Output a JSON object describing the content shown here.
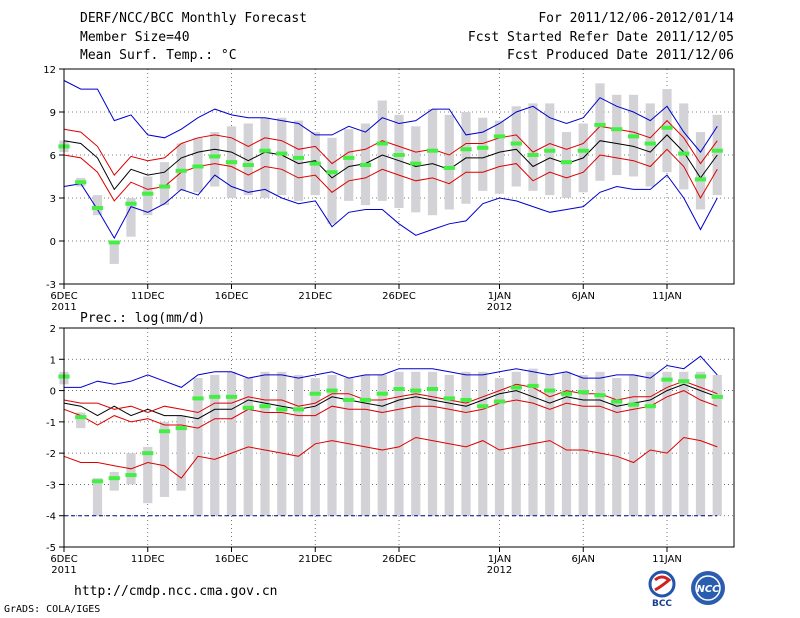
{
  "header": {
    "title": "DERF/NCC/BCC Monthly Forecast",
    "member_size": "Member Size=40",
    "variable": "Mean Surf. Temp.: °C",
    "period": "For 2011/12/06-2012/01/14",
    "started": "Fcst Started Refer Date 2011/12/05",
    "produced": "Fcst Produced Date 2011/12/06"
  },
  "panel2_label": "Prec.: log(mm/d)",
  "footer": {
    "url": "http://cmdp.ncc.cma.gov.cn",
    "grads": "GrADS: COLA/IGES",
    "logo_left": "BCC",
    "logo_right": "NCC"
  },
  "colors": {
    "box": "#d3d3d7",
    "median": "#44ee44",
    "mean": "#000000",
    "inner": "#dd0000",
    "outer": "#0000cc",
    "floor": "#000080"
  },
  "chart_data": [
    {
      "type": "boxplot",
      "title": "Mean Surf. Temp.: °C",
      "ylim": [
        -3,
        12
      ],
      "yticks": [
        -3,
        0,
        3,
        6,
        9,
        12
      ],
      "xlim": [
        6,
        46
      ],
      "xticks": [
        {
          "x": 6,
          "label": "6DEC",
          "sub": "2011"
        },
        {
          "x": 11,
          "label": "11DEC",
          "sub": ""
        },
        {
          "x": 16,
          "label": "16DEC",
          "sub": ""
        },
        {
          "x": 21,
          "label": "21DEC",
          "sub": ""
        },
        {
          "x": 26,
          "label": "26DEC",
          "sub": ""
        },
        {
          "x": 32,
          "label": "1JAN",
          "sub": "2012"
        },
        {
          "x": 37,
          "label": "6JAN",
          "sub": ""
        },
        {
          "x": 42,
          "label": "11JAN",
          "sub": ""
        }
      ],
      "x": [
        6,
        7,
        8,
        9,
        10,
        11,
        12,
        13,
        14,
        15,
        16,
        17,
        18,
        19,
        20,
        21,
        22,
        23,
        24,
        25,
        26,
        27,
        28,
        29,
        30,
        31,
        32,
        33,
        34,
        35,
        36,
        37,
        38,
        39,
        40,
        41,
        42,
        43,
        44,
        45
      ],
      "box_low": [
        6.2,
        3.8,
        1.8,
        -1.6,
        0.3,
        1.8,
        2.5,
        3.5,
        3.4,
        3.8,
        3.0,
        3.2,
        3.0,
        3.2,
        2.8,
        3.2,
        1.2,
        2.8,
        2.5,
        2.8,
        2.3,
        2.0,
        1.8,
        2.2,
        2.6,
        3.5,
        3.3,
        3.8,
        3.5,
        3.2,
        3.0,
        3.4,
        4.2,
        4.6,
        4.5,
        3.8,
        4.8,
        3.6,
        2.2,
        3.2
      ],
      "box_high": [
        7.0,
        4.4,
        3.2,
        0.0,
        3.0,
        4.5,
        5.5,
        6.8,
        7.2,
        7.6,
        8.0,
        8.2,
        8.6,
        8.6,
        8.4,
        7.6,
        7.2,
        7.8,
        8.2,
        9.8,
        8.8,
        8.0,
        9.2,
        8.8,
        9.0,
        8.6,
        8.4,
        9.4,
        9.6,
        9.6,
        7.6,
        8.2,
        11.0,
        10.2,
        10.2,
        9.6,
        10.6,
        9.6,
        7.6,
        8.8
      ],
      "median": [
        6.6,
        4.1,
        2.3,
        -0.1,
        2.6,
        3.3,
        3.8,
        4.9,
        5.2,
        5.9,
        5.5,
        5.3,
        6.3,
        6.1,
        5.8,
        5.4,
        4.8,
        5.8,
        5.3,
        6.8,
        6.0,
        5.4,
        6.3,
        5.1,
        6.4,
        6.5,
        7.3,
        6.8,
        6.0,
        6.3,
        5.5,
        6.3,
        8.1,
        7.8,
        7.3,
        6.8,
        7.9,
        6.1,
        4.3,
        6.3
      ],
      "series": [
        {
          "name": "mean",
          "values": [
            7.0,
            6.8,
            5.8,
            3.6,
            5.0,
            4.6,
            4.8,
            5.8,
            6.2,
            6.4,
            6.2,
            5.6,
            6.2,
            6.0,
            5.4,
            5.6,
            4.4,
            5.2,
            5.4,
            6.0,
            5.6,
            5.2,
            5.4,
            5.0,
            5.8,
            5.8,
            6.2,
            6.4,
            5.2,
            5.8,
            5.4,
            5.8,
            7.0,
            6.8,
            6.6,
            6.2,
            7.4,
            6.2,
            4.4,
            6.0
          ]
        },
        {
          "name": "inner_upper",
          "values": [
            7.8,
            7.6,
            6.6,
            4.6,
            5.9,
            5.6,
            5.8,
            6.8,
            7.2,
            7.4,
            7.2,
            6.6,
            7.2,
            7.0,
            6.4,
            6.6,
            5.4,
            6.2,
            6.4,
            7.0,
            6.6,
            6.2,
            6.4,
            6.0,
            6.8,
            6.8,
            7.2,
            7.4,
            6.2,
            6.8,
            6.4,
            6.8,
            8.0,
            7.8,
            7.6,
            7.2,
            8.4,
            7.2,
            5.4,
            7.0
          ]
        },
        {
          "name": "inner_lower",
          "values": [
            6.0,
            5.8,
            4.8,
            2.8,
            4.1,
            3.6,
            3.8,
            4.8,
            5.2,
            5.4,
            5.2,
            4.6,
            5.2,
            5.0,
            4.4,
            4.6,
            3.4,
            4.2,
            4.4,
            5.0,
            4.6,
            4.2,
            4.4,
            4.0,
            4.8,
            4.8,
            5.2,
            5.4,
            4.2,
            4.8,
            4.4,
            4.8,
            6.0,
            5.8,
            5.6,
            5.2,
            6.4,
            5.2,
            3.0,
            5.0
          ]
        },
        {
          "name": "outer_upper",
          "values": [
            11.2,
            10.6,
            10.6,
            8.4,
            8.8,
            7.4,
            7.2,
            7.8,
            8.6,
            9.2,
            8.8,
            8.6,
            8.6,
            8.4,
            8.2,
            7.4,
            7.4,
            8.0,
            7.6,
            8.6,
            8.2,
            8.4,
            9.2,
            9.2,
            7.4,
            7.6,
            8.2,
            9.0,
            9.4,
            8.6,
            8.2,
            8.6,
            10.0,
            9.4,
            9.0,
            8.4,
            9.4,
            7.6,
            6.2,
            8.0
          ]
        },
        {
          "name": "outer_lower",
          "values": [
            3.8,
            4.0,
            2.2,
            0.2,
            2.4,
            2.0,
            2.6,
            3.6,
            3.2,
            4.6,
            3.8,
            3.4,
            3.6,
            3.0,
            2.6,
            2.8,
            1.0,
            2.0,
            2.2,
            2.2,
            1.2,
            0.4,
            0.8,
            1.2,
            1.4,
            2.6,
            3.0,
            2.8,
            2.4,
            2.0,
            2.2,
            2.4,
            3.4,
            3.8,
            3.6,
            3.6,
            4.6,
            3.0,
            0.8,
            3.0
          ]
        }
      ]
    },
    {
      "type": "boxplot",
      "title": "Prec.: log(mm/d)",
      "ylim": [
        -5,
        2
      ],
      "yticks": [
        -5,
        -4,
        -3,
        -2,
        -1,
        0,
        1,
        2
      ],
      "xlim": [
        6,
        46
      ],
      "xticks": [
        {
          "x": 6,
          "label": "6DEC",
          "sub": "2011"
        },
        {
          "x": 11,
          "label": "11DEC",
          "sub": ""
        },
        {
          "x": 16,
          "label": "16DEC",
          "sub": ""
        },
        {
          "x": 21,
          "label": "21DEC",
          "sub": ""
        },
        {
          "x": 26,
          "label": "26DEC",
          "sub": ""
        },
        {
          "x": 32,
          "label": "1JAN",
          "sub": "2012"
        },
        {
          "x": 37,
          "label": "6JAN",
          "sub": ""
        },
        {
          "x": 42,
          "label": "11JAN",
          "sub": ""
        }
      ],
      "floor": -4,
      "x": [
        6,
        7,
        8,
        9,
        10,
        11,
        12,
        13,
        14,
        15,
        16,
        17,
        18,
        19,
        20,
        21,
        22,
        23,
        24,
        25,
        26,
        27,
        28,
        29,
        30,
        31,
        32,
        33,
        34,
        35,
        36,
        37,
        38,
        39,
        40,
        41,
        42,
        43,
        44,
        45
      ],
      "box_low": [
        0.2,
        -1.2,
        -4.0,
        -3.2,
        -3.0,
        -3.6,
        -3.4,
        -3.2,
        -4.0,
        -4.0,
        -4.0,
        -4.0,
        -4.0,
        -4.0,
        -4.0,
        -4.0,
        -4.0,
        -4.0,
        -4.0,
        -4.0,
        -4.0,
        -4.0,
        -4.0,
        -4.0,
        -4.0,
        -4.0,
        -4.0,
        -4.0,
        -4.0,
        -4.0,
        -4.0,
        -4.0,
        -4.0,
        -4.0,
        -4.0,
        -4.0,
        -4.0,
        -4.0,
        -4.0,
        -4.0
      ],
      "box_high": [
        0.6,
        -0.7,
        -2.8,
        -2.6,
        -2.0,
        -1.8,
        -1.0,
        -0.8,
        0.4,
        0.5,
        0.6,
        0.4,
        0.6,
        0.6,
        0.5,
        0.4,
        0.5,
        0.4,
        0.5,
        0.5,
        0.6,
        0.6,
        0.6,
        0.5,
        0.6,
        0.6,
        0.4,
        0.6,
        0.7,
        0.5,
        0.6,
        0.5,
        0.6,
        0.4,
        0.5,
        0.6,
        0.6,
        0.6,
        0.6,
        0.5
      ],
      "median": [
        0.45,
        -0.85,
        -2.9,
        -2.8,
        -2.7,
        -2.0,
        -1.3,
        -1.2,
        -0.25,
        -0.2,
        -0.2,
        -0.55,
        -0.5,
        -0.6,
        -0.6,
        -0.1,
        0.0,
        -0.3,
        -0.3,
        -0.1,
        0.05,
        0.0,
        0.05,
        -0.25,
        -0.3,
        -0.5,
        -0.35,
        0.1,
        0.15,
        0.0,
        -0.1,
        -0.05,
        -0.15,
        -0.35,
        -0.45,
        -0.5,
        0.35,
        0.3,
        0.45,
        -0.2
      ],
      "series": [
        {
          "name": "mean",
          "values": [
            -0.4,
            -0.5,
            -0.8,
            -0.5,
            -0.8,
            -0.6,
            -0.8,
            -0.8,
            -0.9,
            -0.6,
            -0.6,
            -0.3,
            -0.4,
            -0.5,
            -0.6,
            -0.5,
            -0.2,
            -0.3,
            -0.4,
            -0.5,
            -0.3,
            -0.2,
            -0.3,
            -0.4,
            -0.5,
            -0.3,
            -0.1,
            0.0,
            -0.2,
            -0.4,
            -0.2,
            -0.3,
            -0.3,
            -0.5,
            -0.4,
            -0.3,
            0.0,
            0.2,
            0.0,
            -0.2
          ]
        },
        {
          "name": "inner_upper",
          "values": [
            -0.3,
            -0.4,
            -0.4,
            -0.6,
            -0.5,
            -0.7,
            -0.5,
            -0.6,
            -0.7,
            -0.4,
            -0.4,
            -0.2,
            -0.3,
            -0.3,
            -0.5,
            -0.4,
            -0.1,
            -0.1,
            -0.3,
            -0.3,
            -0.2,
            -0.1,
            -0.2,
            -0.3,
            -0.4,
            -0.2,
            0.0,
            0.2,
            0.1,
            -0.2,
            0.0,
            -0.1,
            -0.1,
            -0.3,
            -0.2,
            -0.2,
            0.1,
            0.3,
            0.1,
            -0.1
          ]
        },
        {
          "name": "inner_lower",
          "values": [
            -0.6,
            -0.8,
            -1.1,
            -0.8,
            -1.0,
            -0.9,
            -1.1,
            -1.1,
            -1.2,
            -0.9,
            -0.9,
            -0.6,
            -0.7,
            -0.7,
            -0.8,
            -0.8,
            -0.5,
            -0.6,
            -0.6,
            -0.7,
            -0.6,
            -0.5,
            -0.5,
            -0.6,
            -0.7,
            -0.6,
            -0.4,
            -0.3,
            -0.4,
            -0.6,
            -0.4,
            -0.5,
            -0.5,
            -0.7,
            -0.6,
            -0.5,
            -0.2,
            0.0,
            -0.3,
            -0.5
          ]
        },
        {
          "name": "inner_far_lower",
          "values": [
            -2.1,
            -2.3,
            -2.3,
            -2.4,
            -2.5,
            -2.3,
            -2.4,
            -2.8,
            -2.1,
            -2.2,
            -2.0,
            -1.8,
            -1.9,
            -2.0,
            -2.1,
            -1.7,
            -1.6,
            -1.7,
            -1.8,
            -1.9,
            -1.8,
            -1.5,
            -1.6,
            -1.7,
            -1.8,
            -1.6,
            -1.9,
            -1.8,
            -1.7,
            -1.6,
            -1.9,
            -1.9,
            -2.0,
            -2.1,
            -2.3,
            -1.9,
            -2.0,
            -1.5,
            -1.6,
            -1.8
          ]
        },
        {
          "name": "outer_upper",
          "values": [
            0.1,
            0.1,
            0.3,
            0.2,
            0.3,
            0.5,
            0.3,
            0.1,
            0.5,
            0.6,
            0.6,
            0.4,
            0.5,
            0.5,
            0.4,
            0.5,
            0.6,
            0.4,
            0.5,
            0.5,
            0.7,
            0.7,
            0.7,
            0.6,
            0.5,
            0.5,
            0.6,
            0.7,
            0.6,
            0.5,
            0.6,
            0.4,
            0.4,
            0.5,
            0.5,
            0.4,
            0.8,
            0.7,
            1.1,
            0.5
          ]
        }
      ]
    }
  ]
}
